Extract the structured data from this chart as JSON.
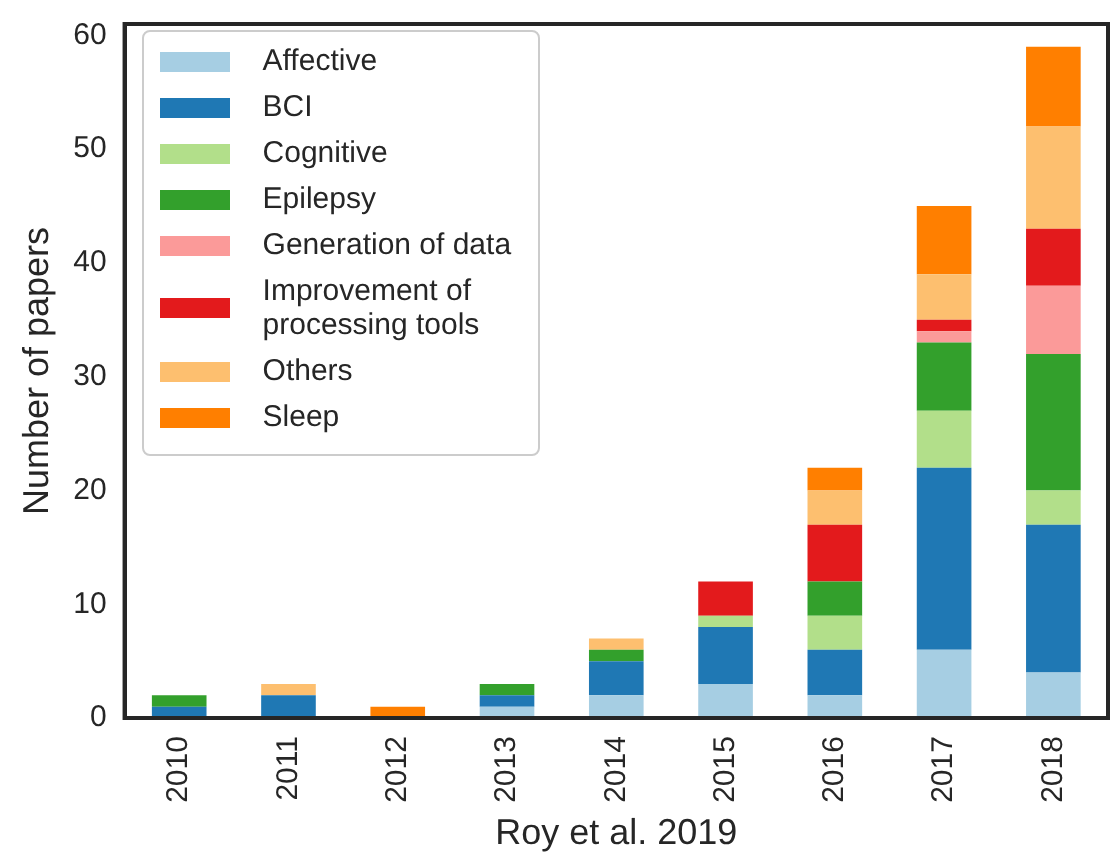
{
  "chart_data": {
    "type": "bar",
    "stacked": true,
    "xlabel": "Roy et al. 2019",
    "ylabel": "Number of papers",
    "categories": [
      "2010",
      "2011",
      "2012",
      "2013",
      "2014",
      "2015",
      "2016",
      "2017",
      "2018"
    ],
    "series": [
      {
        "name": "Affective",
        "color": "#a6cee3",
        "values": [
          0,
          0,
          0,
          1,
          2,
          3,
          2,
          6,
          4
        ]
      },
      {
        "name": "BCI",
        "color": "#1f78b4",
        "values": [
          1,
          2,
          0,
          1,
          3,
          5,
          4,
          16,
          13
        ]
      },
      {
        "name": "Cognitive",
        "color": "#b2df8a",
        "values": [
          0,
          0,
          0,
          0,
          0,
          1,
          3,
          5,
          3
        ]
      },
      {
        "name": "Epilepsy",
        "color": "#33a02c",
        "values": [
          1,
          0,
          0,
          1,
          1,
          0,
          3,
          6,
          12
        ]
      },
      {
        "name": "Generation of data",
        "color": "#fb9a99",
        "values": [
          0,
          0,
          0,
          0,
          0,
          0,
          0,
          1,
          6
        ]
      },
      {
        "name": "Improvement of processing tools",
        "color": "#e31a1c",
        "values": [
          0,
          0,
          0,
          0,
          0,
          3,
          5,
          1,
          5
        ]
      },
      {
        "name": "Others",
        "color": "#fdbf6f",
        "values": [
          0,
          1,
          0,
          0,
          1,
          0,
          3,
          4,
          9
        ]
      },
      {
        "name": "Sleep",
        "color": "#ff7f00",
        "values": [
          0,
          0,
          1,
          0,
          0,
          0,
          2,
          6,
          7
        ]
      }
    ],
    "ylim": [
      0,
      61
    ],
    "yticks": [
      0,
      10,
      20,
      30,
      40,
      50,
      60
    ],
    "grid": false,
    "legend": "top left"
  }
}
